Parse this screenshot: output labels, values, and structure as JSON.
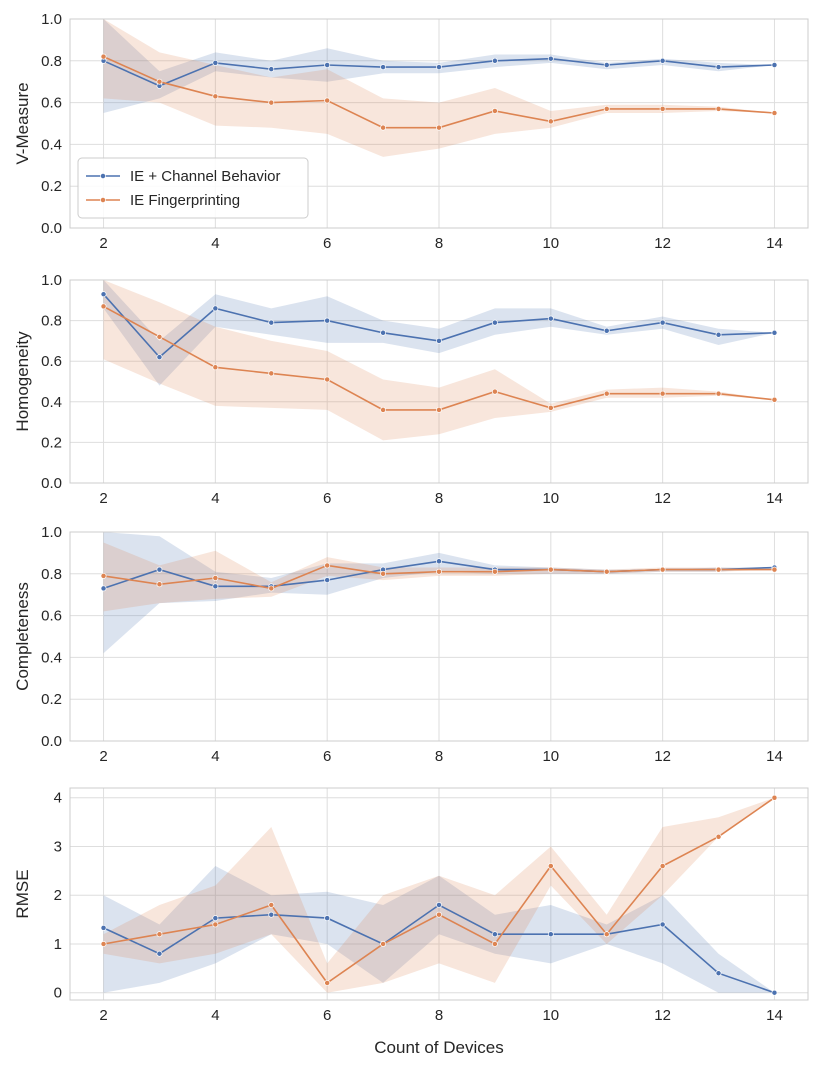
{
  "chart_data": {
    "type": "line",
    "xlabel": "Count of Devices",
    "x": [
      2,
      3,
      4,
      5,
      6,
      7,
      8,
      9,
      10,
      11,
      12,
      13,
      14
    ],
    "xticks": [
      2,
      4,
      6,
      8,
      10,
      12,
      14
    ],
    "xticklabels": [
      "2",
      "4",
      "6",
      "8",
      "10",
      "12",
      "14"
    ],
    "xlim": [
      1.4,
      14.6
    ],
    "series_names": [
      "IE + Channel Behavior",
      "IE Fingerprinting"
    ],
    "colors": {
      "IE + Channel Behavior": "#4c72b0",
      "IE Fingerprinting": "#dd8452"
    },
    "grid": true,
    "legend": {
      "location": "center-left",
      "panel": 0,
      "entries": [
        "IE + Channel Behavior",
        "IE Fingerprinting"
      ]
    },
    "panels": [
      {
        "ylabel": "V-Measure",
        "ylim": [
          0,
          1
        ],
        "yticks": [
          0,
          0.2,
          0.4,
          0.6,
          0.8,
          1.0
        ],
        "yticklabels": [
          "0.0",
          "0.2",
          "0.4",
          "0.6",
          "0.8",
          "1.0"
        ],
        "series": [
          {
            "name": "IE + Channel Behavior",
            "values": [
              0.8,
              0.68,
              0.79,
              0.76,
              0.78,
              0.77,
              0.77,
              0.8,
              0.81,
              0.78,
              0.8,
              0.77,
              0.78
            ],
            "ci_low": [
              0.55,
              0.62,
              0.75,
              0.72,
              0.7,
              0.74,
              0.74,
              0.77,
              0.79,
              0.76,
              0.78,
              0.75,
              0.78
            ],
            "ci_high": [
              1.0,
              0.75,
              0.84,
              0.8,
              0.86,
              0.8,
              0.79,
              0.83,
              0.83,
              0.79,
              0.81,
              0.79,
              0.78
            ]
          },
          {
            "name": "IE Fingerprinting",
            "values": [
              0.82,
              0.7,
              0.63,
              0.6,
              0.61,
              0.48,
              0.48,
              0.56,
              0.51,
              0.57,
              0.57,
              0.57,
              0.55
            ],
            "ci_low": [
              0.62,
              0.6,
              0.49,
              0.48,
              0.45,
              0.34,
              0.38,
              0.45,
              0.48,
              0.55,
              0.55,
              0.56,
              0.55
            ],
            "ci_high": [
              1.0,
              0.84,
              0.78,
              0.72,
              0.76,
              0.62,
              0.6,
              0.67,
              0.56,
              0.59,
              0.59,
              0.58,
              0.55
            ]
          }
        ]
      },
      {
        "ylabel": "Homogeneity",
        "ylim": [
          0,
          1
        ],
        "yticks": [
          0,
          0.2,
          0.4,
          0.6,
          0.8,
          1.0
        ],
        "yticklabels": [
          "0.0",
          "0.2",
          "0.4",
          "0.6",
          "0.8",
          "1.0"
        ],
        "series": [
          {
            "name": "IE + Channel Behavior",
            "values": [
              0.93,
              0.62,
              0.86,
              0.79,
              0.8,
              0.74,
              0.7,
              0.79,
              0.81,
              0.75,
              0.79,
              0.73,
              0.74
            ],
            "ci_low": [
              0.86,
              0.48,
              0.77,
              0.73,
              0.69,
              0.69,
              0.64,
              0.73,
              0.77,
              0.73,
              0.76,
              0.68,
              0.74
            ],
            "ci_high": [
              1.0,
              0.7,
              0.93,
              0.86,
              0.92,
              0.8,
              0.76,
              0.86,
              0.86,
              0.77,
              0.82,
              0.76,
              0.74
            ]
          },
          {
            "name": "IE Fingerprinting",
            "values": [
              0.87,
              0.72,
              0.57,
              0.54,
              0.51,
              0.36,
              0.36,
              0.45,
              0.37,
              0.44,
              0.44,
              0.44,
              0.41
            ],
            "ci_low": [
              0.61,
              0.49,
              0.38,
              0.37,
              0.36,
              0.21,
              0.24,
              0.32,
              0.35,
              0.42,
              0.42,
              0.43,
              0.41
            ],
            "ci_high": [
              1.0,
              0.89,
              0.77,
              0.7,
              0.65,
              0.51,
              0.47,
              0.56,
              0.39,
              0.46,
              0.47,
              0.45,
              0.41
            ]
          }
        ]
      },
      {
        "ylabel": "Completeness",
        "ylim": [
          0,
          1
        ],
        "yticks": [
          0,
          0.2,
          0.4,
          0.6,
          0.8,
          1.0
        ],
        "yticklabels": [
          "0.0",
          "0.2",
          "0.4",
          "0.6",
          "0.8",
          "1.0"
        ],
        "series": [
          {
            "name": "IE + Channel Behavior",
            "values": [
              0.73,
              0.82,
              0.74,
              0.74,
              0.77,
              0.82,
              0.86,
              0.82,
              0.82,
              0.81,
              0.82,
              0.82,
              0.83
            ],
            "ci_low": [
              0.42,
              0.66,
              0.67,
              0.71,
              0.7,
              0.78,
              0.81,
              0.8,
              0.8,
              0.8,
              0.81,
              0.81,
              0.83
            ],
            "ci_high": [
              1.0,
              0.98,
              0.81,
              0.78,
              0.85,
              0.85,
              0.9,
              0.84,
              0.83,
              0.82,
              0.82,
              0.83,
              0.83
            ]
          },
          {
            "name": "IE Fingerprinting",
            "values": [
              0.79,
              0.75,
              0.78,
              0.73,
              0.84,
              0.8,
              0.81,
              0.81,
              0.82,
              0.81,
              0.82,
              0.82,
              0.82
            ],
            "ci_low": [
              0.62,
              0.66,
              0.68,
              0.69,
              0.79,
              0.77,
              0.79,
              0.79,
              0.8,
              0.8,
              0.81,
              0.81,
              0.82
            ],
            "ci_high": [
              0.95,
              0.84,
              0.91,
              0.76,
              0.88,
              0.83,
              0.83,
              0.83,
              0.83,
              0.82,
              0.83,
              0.83,
              0.82
            ]
          }
        ]
      },
      {
        "ylabel": "RMSE",
        "ylim": [
          -0.15,
          4.2
        ],
        "yticks": [
          0,
          1,
          2,
          3,
          4
        ],
        "yticklabels": [
          "0",
          "1",
          "2",
          "3",
          "4"
        ],
        "series": [
          {
            "name": "IE + Channel Behavior",
            "values": [
              1.33,
              0.8,
              1.53,
              1.6,
              1.53,
              1.0,
              1.8,
              1.2,
              1.2,
              1.2,
              1.4,
              0.4,
              0.0
            ],
            "ci_low": [
              0.0,
              0.2,
              0.6,
              1.2,
              1.0,
              0.2,
              1.2,
              0.8,
              0.6,
              1.0,
              0.6,
              0.0,
              0.0
            ],
            "ci_high": [
              2.0,
              1.4,
              2.6,
              2.0,
              2.07,
              1.8,
              2.4,
              1.6,
              1.8,
              1.4,
              2.0,
              0.8,
              0.0
            ]
          },
          {
            "name": "IE Fingerprinting",
            "values": [
              1.0,
              1.2,
              1.4,
              1.8,
              0.2,
              1.0,
              1.6,
              1.0,
              2.6,
              1.2,
              2.6,
              3.2,
              4.0
            ],
            "ci_low": [
              0.8,
              0.6,
              0.8,
              1.2,
              0.0,
              0.2,
              0.6,
              0.2,
              2.2,
              1.0,
              2.0,
              3.2,
              4.0
            ],
            "ci_high": [
              1.2,
              1.8,
              2.2,
              3.4,
              0.6,
              2.0,
              2.4,
              2.0,
              3.0,
              1.6,
              3.4,
              3.6,
              4.0
            ]
          }
        ]
      }
    ]
  }
}
